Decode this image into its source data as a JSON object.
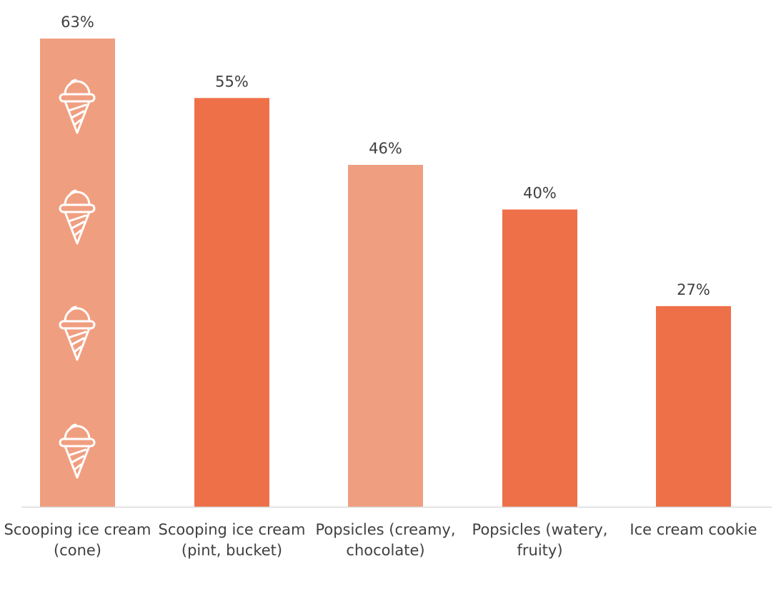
{
  "chart_data": {
    "type": "bar",
    "title": "",
    "xlabel": "",
    "ylabel": "",
    "categories": [
      "Scooping ice cream (cone)",
      "Scooping ice cream (pint, bucket)",
      "Popsicles (creamy, chocolate)",
      "Popsicles (watery, fruity)",
      "Ice cream cookie"
    ],
    "values": [
      63,
      55,
      46,
      40,
      27
    ],
    "data_labels": [
      "63%",
      "55%",
      "46%",
      "40%",
      "27%"
    ],
    "unit": "%",
    "ylim": [
      0,
      68
    ],
    "grid": false,
    "legend": "none",
    "bar_colors": [
      "#F09E80",
      "#EE7048",
      "#F09E80",
      "#EE7048",
      "#EE7048"
    ],
    "axis_color": "#D9D9D9",
    "icon": "ice-cream-cone-icon",
    "icon_color": "#FFFFFF",
    "icon_count_on_first_bar": 4
  }
}
